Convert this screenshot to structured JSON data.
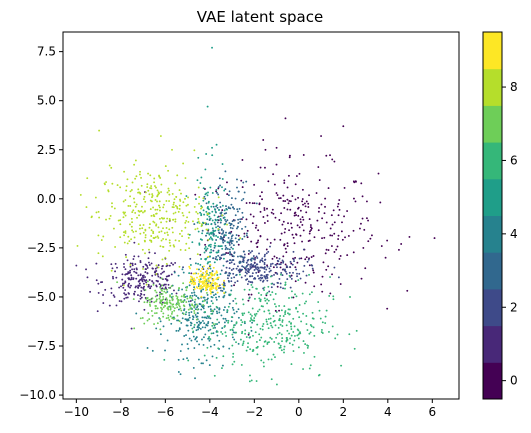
{
  "chart_data": {
    "type": "scatter",
    "title": "VAE latent space",
    "xlabel": "",
    "ylabel": "",
    "xlim": [
      -10.6,
      7.2
    ],
    "ylim": [
      -10.2,
      8.5
    ],
    "x_ticks": [
      -10,
      -8,
      -6,
      -4,
      -2,
      0,
      2,
      4,
      6
    ],
    "y_ticks": [
      -10.0,
      -7.5,
      -5.0,
      -2.5,
      0.0,
      2.5,
      5.0,
      7.5
    ],
    "grid": false,
    "marker_size": 1.5,
    "colormap": "viridis",
    "colorbar": {
      "range": [
        -0.5,
        9.5
      ],
      "ticks": [
        0,
        2,
        4,
        6,
        8
      ],
      "levels": 10,
      "colors": [
        "#440154",
        "#482878",
        "#3e4a89",
        "#31688e",
        "#26828e",
        "#1f9e89",
        "#35b779",
        "#6ece58",
        "#b5de2b",
        "#fde725"
      ]
    },
    "series": [
      {
        "label": 0,
        "count": 320,
        "center": [
          -0.3,
          -1.5
        ],
        "spread": [
          1.9,
          1.6
        ],
        "points": [
          [
            -0.6,
            4.1
          ],
          [
            1.0,
            3.2
          ],
          [
            2.0,
            3.7
          ],
          [
            1.6,
            1.9
          ],
          [
            4.6,
            -2.3
          ],
          [
            4.5,
            -2.6
          ],
          [
            6.1,
            -2.0
          ],
          [
            3.9,
            -3.0
          ],
          [
            2.9,
            -2.5
          ],
          [
            -0.4,
            2.2
          ],
          [
            -1.6,
            3.0
          ],
          [
            -1.0,
            2.6
          ]
        ]
      },
      {
        "label": 1,
        "count": 240,
        "center": [
          -7.0,
          -4.2
        ],
        "spread": [
          0.9,
          0.6
        ],
        "points": [
          [
            -10.0,
            -3.4
          ],
          [
            -9.1,
            -3.3
          ],
          [
            -8.8,
            -4.9
          ],
          [
            -5.9,
            -3.4
          ],
          [
            -9.5,
            -4.0
          ]
        ]
      },
      {
        "label": 2,
        "count": 240,
        "center": [
          -2.0,
          -3.6
        ],
        "spread": [
          1.1,
          0.5
        ],
        "points": [
          [
            0.2,
            -3.7
          ],
          [
            1.6,
            -3.5
          ],
          [
            1.8,
            -4.0
          ],
          [
            -0.7,
            -3.2
          ]
        ]
      },
      {
        "label": 3,
        "count": 200,
        "center": [
          -3.2,
          -1.8
        ],
        "spread": [
          0.5,
          1.3
        ],
        "points": [
          [
            -3.3,
            1.4
          ],
          [
            -3.6,
            0.6
          ]
        ]
      },
      {
        "label": 4,
        "count": 280,
        "center": [
          -4.3,
          -6.0
        ],
        "spread": [
          0.8,
          1.0
        ],
        "points": [
          [
            -6.8,
            -7.6
          ],
          [
            -5.4,
            -8.2
          ],
          [
            -6.2,
            -6.9
          ]
        ]
      },
      {
        "label": 5,
        "count": 160,
        "center": [
          -4.0,
          -1.9
        ],
        "spread": [
          0.35,
          1.6
        ],
        "points": [
          [
            -4.1,
            4.7
          ],
          [
            -3.9,
            2.6
          ],
          [
            -4.2,
            1.5
          ]
        ]
      },
      {
        "label": 6,
        "count": 330,
        "center": [
          -1.4,
          -6.4
        ],
        "spread": [
          1.4,
          1.2
        ],
        "points": [
          [
            1.9,
            -8.5
          ],
          [
            -2.2,
            -9.3
          ],
          [
            -2.9,
            -8.3
          ],
          [
            2.3,
            -5.0
          ],
          [
            0.9,
            -9.0
          ]
        ]
      },
      {
        "label": 7,
        "count": 170,
        "center": [
          -5.8,
          -5.3
        ],
        "spread": [
          0.7,
          0.5
        ],
        "points": [
          [
            -7.4,
            -6.6
          ],
          [
            -6.8,
            -6.2
          ],
          [
            -5.2,
            -4.3
          ]
        ]
      },
      {
        "label": 8,
        "count": 320,
        "center": [
          -6.6,
          -0.8
        ],
        "spread": [
          1.2,
          1.2
        ],
        "points": [
          [
            -9.8,
            0.2
          ],
          [
            -9.3,
            -0.9
          ],
          [
            -8.5,
            1.7
          ],
          [
            -6.2,
            3.2
          ],
          [
            -5.7,
            2.5
          ],
          [
            -5.2,
            1.8
          ]
        ]
      },
      {
        "label": 9,
        "count": 140,
        "center": [
          -4.2,
          -4.2
        ],
        "spread": [
          0.35,
          0.35
        ],
        "points": [
          [
            -3.7,
            -4.6
          ],
          [
            -4.8,
            -4.0
          ]
        ]
      }
    ],
    "extra_points": [
      {
        "label": 5,
        "x": -3.9,
        "y": 7.7
      }
    ]
  }
}
